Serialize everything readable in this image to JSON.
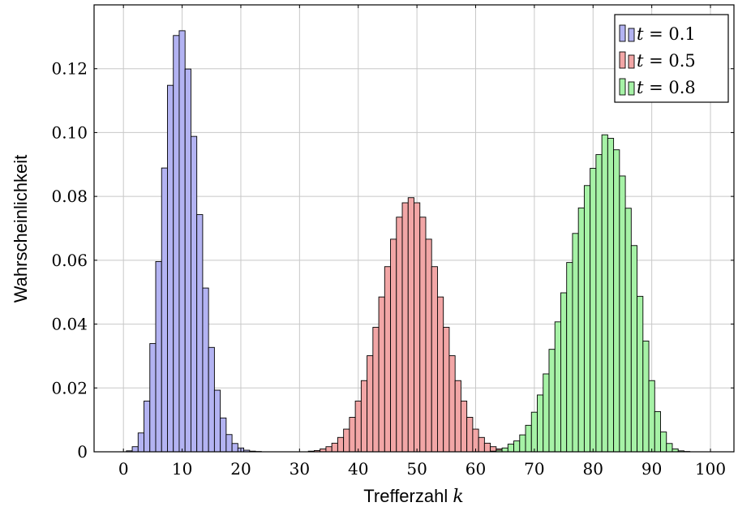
{
  "chart_data": {
    "type": "bar",
    "xlabel": "Trefferzahl",
    "xlabel_var": "k",
    "ylabel": "Wahrscheinlichkeit",
    "xlim": [
      -5,
      104
    ],
    "ylim": [
      0,
      0.14
    ],
    "xticks": [
      0,
      10,
      20,
      30,
      40,
      50,
      60,
      70,
      80,
      90,
      100
    ],
    "yticks": [
      0,
      0.02,
      0.04,
      0.06,
      0.08,
      0.1,
      0.12
    ],
    "ytick_labels": [
      "0",
      "0.02",
      "0.04",
      "0.06",
      "0.08",
      "0.10",
      "0.12"
    ],
    "grid": true,
    "legend_position": "top-right",
    "series": [
      {
        "name": "t = 0.1",
        "legend_var": "t",
        "legend_rest": " = 0.1",
        "color": "#b3b3f2",
        "x_start": 0,
        "values": [
          0.0,
          0.0003,
          0.0016,
          0.0059,
          0.0159,
          0.0339,
          0.0596,
          0.0889,
          0.1148,
          0.1304,
          0.1319,
          0.1199,
          0.0988,
          0.0743,
          0.0513,
          0.0327,
          0.0193,
          0.0106,
          0.0054,
          0.0026,
          0.0012,
          0.0005,
          0.0002,
          0.0001
        ]
      },
      {
        "name": "t = 0.5",
        "legend_var": "t",
        "legend_rest": " = 0.5",
        "color": "#f2a6a6",
        "x_start": 32,
        "values": [
          0.0002,
          0.0004,
          0.0009,
          0.0016,
          0.0027,
          0.0045,
          0.0071,
          0.0108,
          0.0159,
          0.0223,
          0.0301,
          0.039,
          0.0485,
          0.058,
          0.0666,
          0.0735,
          0.078,
          0.0796,
          0.078,
          0.0735,
          0.0666,
          0.058,
          0.0485,
          0.039,
          0.0301,
          0.0223,
          0.0159,
          0.0108,
          0.0071,
          0.0045,
          0.0027,
          0.0016,
          0.0009,
          0.0004,
          0.0002
        ]
      },
      {
        "name": "t = 0.8",
        "legend_var": "t",
        "legend_rest": " = 0.8",
        "color": "#a6f2a6",
        "x_start": 63,
        "values": [
          0.0002,
          0.0005,
          0.0012,
          0.0024,
          0.0034,
          0.0053,
          0.0083,
          0.0124,
          0.0178,
          0.0244,
          0.0321,
          0.0407,
          0.0498,
          0.0593,
          0.0684,
          0.0764,
          0.0834,
          0.0888,
          0.0931,
          0.0993,
          0.0982,
          0.0946,
          0.0864,
          0.0763,
          0.0646,
          0.0487,
          0.0347,
          0.0223,
          0.0126,
          0.0062,
          0.0026,
          0.0009,
          0.0003,
          0.0001
        ]
      }
    ]
  }
}
